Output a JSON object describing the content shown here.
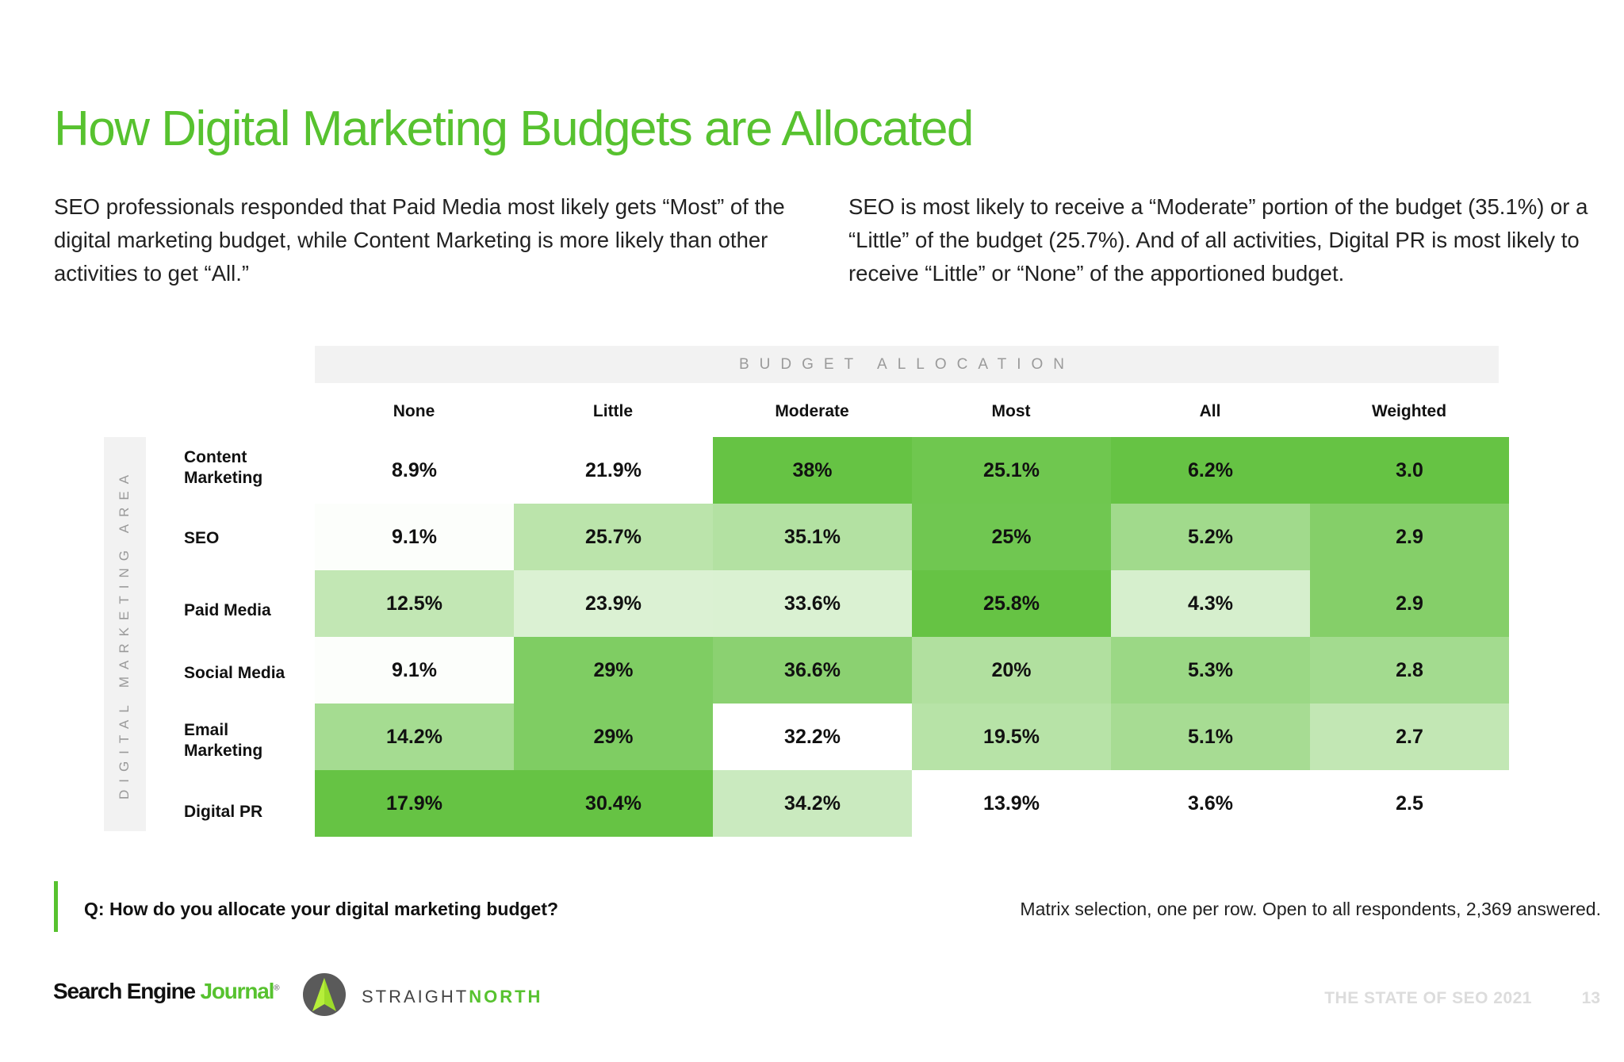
{
  "header": {
    "title": "How Digital Marketing Budgets are Allocated",
    "intro_left": "SEO professionals responded that Paid Media most likely gets “Most” of the digital marketing budget, while Content Marketing is more likely than other activities to get “All.”",
    "intro_right": "SEO is most likely to receive a “Moderate” portion of the budget (35.1%) or a “Little” of the budget (25.7%). And of all activities, Digital PR is most likely to receive “Little” or “None” of the apportioned budget."
  },
  "chart_data": {
    "type": "heatmap",
    "x_axis_title": "BUDGET ALLOCATION",
    "y_axis_title": "DIGITAL MARKETING AREA",
    "columns": [
      "None",
      "Little",
      "Moderate",
      "Most",
      "All",
      "Weighted"
    ],
    "rows": [
      "Content Marketing",
      "SEO",
      "Paid Media",
      "Social Media",
      "Email Marketing",
      "Digital PR"
    ],
    "cell_labels": [
      [
        "8.9%",
        "21.9%",
        "38%",
        "25.1%",
        "6.2%",
        "3.0"
      ],
      [
        "9.1%",
        "25.7%",
        "35.1%",
        "25%",
        "5.2%",
        "2.9"
      ],
      [
        "12.5%",
        "23.9%",
        "33.6%",
        "25.8%",
        "4.3%",
        "2.9"
      ],
      [
        "9.1%",
        "29%",
        "36.6%",
        "20%",
        "5.3%",
        "2.8"
      ],
      [
        "14.2%",
        "29%",
        "32.2%",
        "19.5%",
        "5.1%",
        "2.7"
      ],
      [
        "17.9%",
        "30.4%",
        "34.2%",
        "13.9%",
        "3.6%",
        "2.5"
      ]
    ],
    "values": [
      [
        8.9,
        21.9,
        38,
        25.1,
        6.2,
        3.0
      ],
      [
        9.1,
        25.7,
        35.1,
        25,
        5.2,
        2.9
      ],
      [
        12.5,
        23.9,
        33.6,
        25.8,
        4.3,
        2.9
      ],
      [
        9.1,
        29,
        36.6,
        20,
        5.3,
        2.8
      ],
      [
        14.2,
        29,
        32.2,
        19.5,
        5.1,
        2.7
      ],
      [
        17.9,
        30.4,
        34.2,
        13.9,
        3.6,
        2.5
      ]
    ],
    "color_scale": "column-wise, white (column min) to green (column max)",
    "colors": {
      "low": "#ffffff",
      "high": "#66c344"
    }
  },
  "question": "Q: How do you allocate your digital marketing budget?",
  "note": "Matrix selection, one per row. Open to all respondents, 2,369 answered.",
  "footer": {
    "logo_sej_part1": "Search Engine ",
    "logo_sej_part2": "Journal",
    "logo_sej_mark": "®",
    "logo_sn_part1": "STRAIGHT",
    "logo_sn_part2": "NORTH",
    "report_title": "THE STATE OF SEO 2021",
    "page_number": "13"
  },
  "colors": {
    "accent": "#57c22f"
  }
}
